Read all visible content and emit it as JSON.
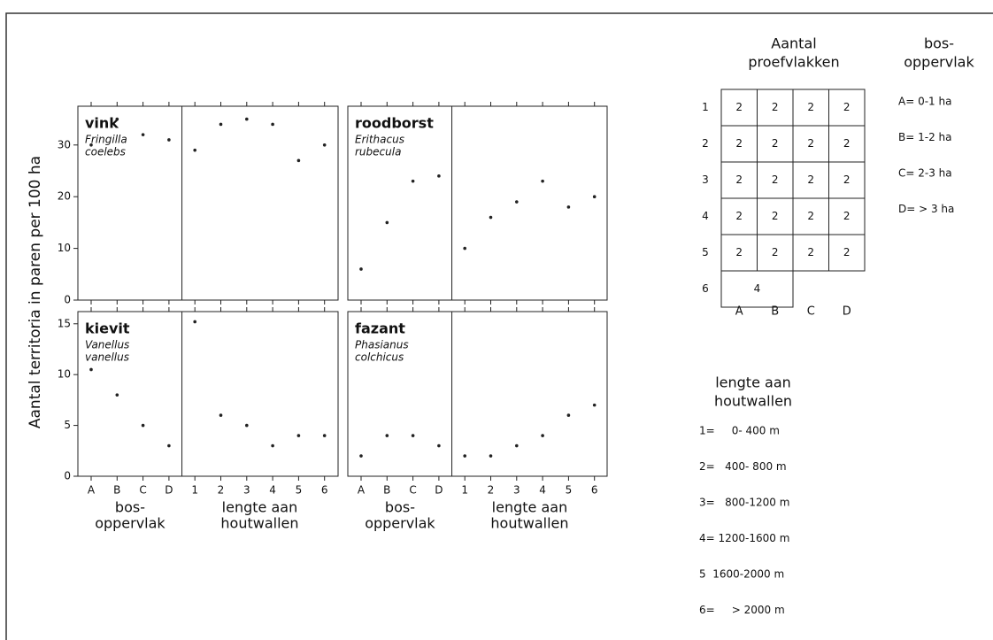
{
  "y_label": "Aantal territoria in paren per 100 ha",
  "chart_data": [
    {
      "type": "scatter",
      "title": "vink",
      "subtitle": [
        "Fringilla",
        "coelebs"
      ],
      "values": [
        30,
        35,
        32,
        31,
        29,
        34,
        35,
        34,
        27,
        30
      ],
      "ylim": [
        0,
        37.5
      ],
      "yticks": [
        0,
        10,
        20,
        30
      ],
      "color": "#222222"
    },
    {
      "type": "scatter",
      "title": "roodborst",
      "subtitle": [
        "Erithacus",
        "rubecula"
      ],
      "values": [
        6,
        15,
        23,
        24,
        10,
        16,
        19,
        23,
        18,
        20
      ],
      "ylim": [
        0,
        37.5
      ],
      "color": "#222222"
    },
    {
      "type": "scatter",
      "title": "kievit",
      "subtitle": [
        "Vanellus",
        "vanellus"
      ],
      "categories": [
        "A",
        "B",
        "C",
        "D",
        "1",
        "2",
        "3",
        "4",
        "5",
        "6"
      ],
      "values": [
        10.5,
        8,
        5,
        3,
        15.2,
        6,
        5,
        3,
        4,
        4
      ],
      "ylim": [
        0,
        16.2
      ],
      "yticks": [
        0,
        5,
        10,
        15
      ],
      "color": "#222222",
      "x_group_labels": [
        [
          "bos-",
          "oppervlak"
        ],
        [
          "lengte aan",
          "houtwallen"
        ]
      ]
    },
    {
      "type": "scatter",
      "title": "fazant",
      "subtitle": [
        "Phasianus",
        "colchicus"
      ],
      "categories": [
        "A",
        "B",
        "C",
        "D",
        "1",
        "2",
        "3",
        "4",
        "5",
        "6"
      ],
      "values": [
        2,
        4,
        4,
        3,
        2,
        2,
        3,
        4,
        6,
        7
      ],
      "ylim": [
        0,
        16.2
      ],
      "color": "#222222",
      "x_group_labels": [
        [
          "bos-",
          "oppervlak"
        ],
        [
          "lengte aan",
          "houtwallen"
        ]
      ]
    }
  ],
  "design_table": {
    "title": [
      "Aantal",
      "proefvlakken"
    ],
    "row_labels": [
      "1",
      "2",
      "3",
      "4",
      "5",
      "6"
    ],
    "col_labels": [
      "A",
      "B",
      "C",
      "D"
    ],
    "rows": [
      [
        "2",
        "2",
        "2",
        "2"
      ],
      [
        "2",
        "2",
        "2",
        "2"
      ],
      [
        "2",
        "2",
        "2",
        "2"
      ],
      [
        "2",
        "2",
        "2",
        "2"
      ],
      [
        "2",
        "2",
        "2",
        "2"
      ],
      [
        "4"
      ]
    ]
  },
  "bos_legend": {
    "title": [
      "bos-",
      "oppervlak"
    ],
    "items": [
      "A= 0-1 ha",
      "B= 1-2 ha",
      "C= 2-3 ha",
      "D= > 3 ha"
    ]
  },
  "lengte_legend": {
    "title": [
      "lengte aan",
      "houtwallen"
    ],
    "items": [
      "1=     0- 400 m",
      "2=   400- 800 m",
      "3=   800-1200 m",
      "4= 1200-1600 m",
      "5  1600-2000 m",
      "6=     > 2000 m"
    ]
  }
}
